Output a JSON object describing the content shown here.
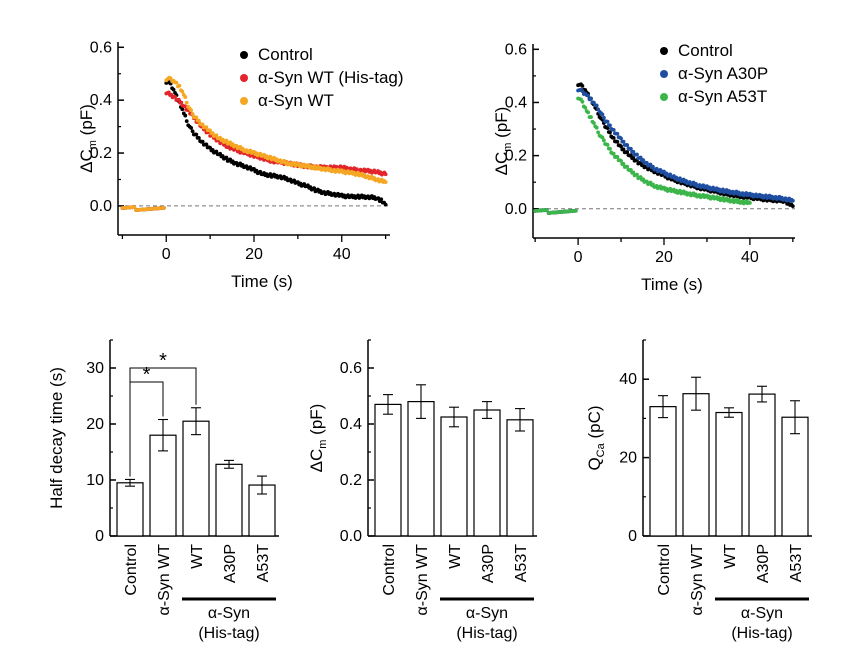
{
  "chart_data": [
    {
      "id": "A",
      "type": "scatter",
      "xlabel": "Time (s)",
      "ylabel_main": "ΔC",
      "ylabel_sub": "m",
      "ylabel_unit": " (pF)",
      "xlim": [
        -11,
        51
      ],
      "ylim": [
        -0.11,
        0.62
      ],
      "xticks": [
        0,
        20,
        40
      ],
      "yticks": [
        0.0,
        0.2,
        0.4,
        0.6
      ],
      "ytick_labels": [
        "0.0",
        "0.2",
        "0.4",
        "0.6"
      ],
      "baseline": 0,
      "series": [
        {
          "name": "Control",
          "color": "#000000",
          "pre": [
            -10,
            -0.2,
            0.0
          ],
          "points": [
            [
              0,
              0.47
            ],
            [
              1,
              0.46
            ],
            [
              2,
              0.43
            ],
            [
              3,
              0.39
            ],
            [
              4,
              0.35
            ],
            [
              5,
              0.31
            ],
            [
              6,
              0.28
            ],
            [
              8,
              0.245
            ],
            [
              10,
              0.215
            ],
            [
              12,
              0.195
            ],
            [
              14,
              0.175
            ],
            [
              16,
              0.16
            ],
            [
              18,
              0.15
            ],
            [
              20,
              0.135
            ],
            [
              22,
              0.12
            ],
            [
              24,
              0.115
            ],
            [
              26,
              0.11
            ],
            [
              28,
              0.1
            ],
            [
              30,
              0.085
            ],
            [
              32,
              0.075
            ],
            [
              34,
              0.06
            ],
            [
              36,
              0.05
            ],
            [
              38,
              0.045
            ],
            [
              40,
              0.038
            ],
            [
              42,
              0.035
            ],
            [
              44,
              0.035
            ],
            [
              46,
              0.034
            ],
            [
              48,
              0.03
            ],
            [
              49,
              0.02
            ],
            [
              50,
              0.005
            ]
          ]
        },
        {
          "name": "α-Syn WT (His-tag)",
          "color": "#e3242b",
          "pre": [
            -10,
            -0.2,
            0.0
          ],
          "points": [
            [
              0,
              0.43
            ],
            [
              2,
              0.41
            ],
            [
              4,
              0.38
            ],
            [
              6,
              0.34
            ],
            [
              8,
              0.3
            ],
            [
              10,
              0.27
            ],
            [
              12,
              0.245
            ],
            [
              14,
              0.225
            ],
            [
              16,
              0.21
            ],
            [
              18,
              0.2
            ],
            [
              20,
              0.19
            ],
            [
              22,
              0.18
            ],
            [
              24,
              0.17
            ],
            [
              26,
              0.165
            ],
            [
              28,
              0.16
            ],
            [
              30,
              0.155
            ],
            [
              32,
              0.15
            ],
            [
              34,
              0.148
            ],
            [
              36,
              0.145
            ],
            [
              38,
              0.145
            ],
            [
              40,
              0.145
            ],
            [
              42,
              0.14
            ],
            [
              44,
              0.135
            ],
            [
              46,
              0.132
            ],
            [
              48,
              0.128
            ],
            [
              50,
              0.12
            ]
          ]
        },
        {
          "name": "α-Syn WT",
          "color": "#f5a623",
          "pre": [
            -10,
            -0.2,
            0.0
          ],
          "points": [
            [
              0,
              0.48
            ],
            [
              1,
              0.48
            ],
            [
              2,
              0.47
            ],
            [
              3,
              0.45
            ],
            [
              4,
              0.42
            ],
            [
              5,
              0.38
            ],
            [
              6,
              0.345
            ],
            [
              8,
              0.31
            ],
            [
              10,
              0.28
            ],
            [
              12,
              0.255
            ],
            [
              14,
              0.24
            ],
            [
              16,
              0.225
            ],
            [
              18,
              0.21
            ],
            [
              20,
              0.2
            ],
            [
              22,
              0.19
            ],
            [
              24,
              0.18
            ],
            [
              26,
              0.17
            ],
            [
              28,
              0.16
            ],
            [
              30,
              0.155
            ],
            [
              32,
              0.15
            ],
            [
              34,
              0.145
            ],
            [
              36,
              0.14
            ],
            [
              38,
              0.135
            ],
            [
              40,
              0.13
            ],
            [
              42,
              0.125
            ],
            [
              44,
              0.12
            ],
            [
              46,
              0.11
            ],
            [
              48,
              0.1
            ],
            [
              50,
              0.09
            ]
          ]
        }
      ]
    },
    {
      "id": "B",
      "type": "scatter",
      "xlabel": "Time (s)",
      "ylabel_main": "ΔC",
      "ylabel_sub": "m",
      "ylabel_unit": " (pF)",
      "xlim": [
        -10.5,
        50.5
      ],
      "ylim": [
        -0.11,
        0.62
      ],
      "xticks": [
        0,
        20,
        40
      ],
      "yticks": [
        0.0,
        0.2,
        0.4,
        0.6
      ],
      "ytick_labels": [
        "0.0",
        "0.2",
        "0.4",
        "0.6"
      ],
      "baseline": 0,
      "series": [
        {
          "name": "Control",
          "color": "#000000",
          "pre": [
            -10,
            -0.2,
            0.0
          ],
          "points": [
            [
              0,
              0.47
            ],
            [
              1,
              0.46
            ],
            [
              2,
              0.44
            ],
            [
              3,
              0.41
            ],
            [
              4,
              0.38
            ],
            [
              5,
              0.35
            ],
            [
              6,
              0.32
            ],
            [
              8,
              0.27
            ],
            [
              10,
              0.23
            ],
            [
              12,
              0.2
            ],
            [
              14,
              0.175
            ],
            [
              16,
              0.155
            ],
            [
              18,
              0.14
            ],
            [
              20,
              0.125
            ],
            [
              22,
              0.11
            ],
            [
              24,
              0.1
            ],
            [
              26,
              0.09
            ],
            [
              28,
              0.08
            ],
            [
              30,
              0.072
            ],
            [
              32,
              0.065
            ],
            [
              34,
              0.058
            ],
            [
              36,
              0.052
            ],
            [
              38,
              0.047
            ],
            [
              40,
              0.042
            ],
            [
              42,
              0.038
            ],
            [
              44,
              0.035
            ],
            [
              46,
              0.032
            ],
            [
              48,
              0.03
            ],
            [
              49,
              0.02
            ],
            [
              50,
              0.01
            ]
          ]
        },
        {
          "name": "α-Syn A30P",
          "color": "#1f4ea1",
          "pre": [
            -10,
            -0.2,
            0.0
          ],
          "points": [
            [
              0,
              0.45
            ],
            [
              1,
              0.44
            ],
            [
              2,
              0.43
            ],
            [
              3,
              0.41
            ],
            [
              4,
              0.39
            ],
            [
              5,
              0.37
            ],
            [
              6,
              0.34
            ],
            [
              8,
              0.3
            ],
            [
              10,
              0.26
            ],
            [
              12,
              0.225
            ],
            [
              14,
              0.195
            ],
            [
              16,
              0.17
            ],
            [
              18,
              0.15
            ],
            [
              20,
              0.135
            ],
            [
              22,
              0.12
            ],
            [
              24,
              0.108
            ],
            [
              26,
              0.098
            ],
            [
              28,
              0.088
            ],
            [
              30,
              0.08
            ],
            [
              32,
              0.073
            ],
            [
              34,
              0.067
            ],
            [
              36,
              0.062
            ],
            [
              38,
              0.057
            ],
            [
              40,
              0.052
            ],
            [
              42,
              0.048
            ],
            [
              44,
              0.045
            ],
            [
              46,
              0.042
            ],
            [
              48,
              0.038
            ],
            [
              50,
              0.03
            ]
          ]
        },
        {
          "name": "α-Syn A53T",
          "color": "#3cb54a",
          "pre": [
            -10,
            -0.2,
            0.0
          ],
          "points": [
            [
              0,
              0.42
            ],
            [
              1,
              0.4
            ],
            [
              2,
              0.37
            ],
            [
              3,
              0.34
            ],
            [
              4,
              0.31
            ],
            [
              5,
              0.28
            ],
            [
              6,
              0.255
            ],
            [
              8,
              0.21
            ],
            [
              10,
              0.175
            ],
            [
              12,
              0.145
            ],
            [
              14,
              0.12
            ],
            [
              16,
              0.1
            ],
            [
              18,
              0.085
            ],
            [
              20,
              0.075
            ],
            [
              22,
              0.068
            ],
            [
              24,
              0.062
            ],
            [
              26,
              0.056
            ],
            [
              28,
              0.05
            ],
            [
              30,
              0.045
            ],
            [
              32,
              0.04
            ],
            [
              34,
              0.035
            ],
            [
              36,
              0.03
            ],
            [
              38,
              0.026
            ],
            [
              40,
              0.022
            ]
          ]
        }
      ]
    },
    {
      "id": "C",
      "type": "bar",
      "ylabel": "Half decay time (s)",
      "ylim": [
        0,
        35
      ],
      "yticks": [
        0,
        10,
        20,
        30
      ],
      "ytick_labels": [
        "0",
        "10",
        "20",
        "30"
      ],
      "categories": [
        "Control",
        "α-Syn WT",
        "WT",
        "A30P",
        "A53T"
      ],
      "values": [
        9.5,
        18.0,
        20.5,
        12.8,
        9.1
      ],
      "errors": [
        0.6,
        2.8,
        2.4,
        0.7,
        1.6
      ],
      "significance": [
        {
          "from": 0,
          "to": 1,
          "level": 27.5,
          "label": "*"
        },
        {
          "from": 0,
          "to": 2,
          "level": 30.0,
          "label": "*"
        }
      ],
      "group_label_line1": "α-Syn",
      "group_label_line2": "(His-tag)"
    },
    {
      "id": "D",
      "type": "bar",
      "ylabel_main": "ΔC",
      "ylabel_sub": "m",
      "ylabel_unit": " (pF)",
      "ylim": [
        0,
        0.7
      ],
      "yticks": [
        0.0,
        0.2,
        0.4,
        0.6
      ],
      "ytick_labels": [
        "0.0",
        "0.2",
        "0.4",
        "0.6"
      ],
      "categories": [
        "Control",
        "α-Syn WT",
        "WT",
        "A30P",
        "A53T"
      ],
      "values": [
        0.47,
        0.48,
        0.425,
        0.45,
        0.415
      ],
      "errors": [
        0.035,
        0.06,
        0.035,
        0.03,
        0.04
      ],
      "group_label_line1": "α-Syn",
      "group_label_line2": "(His-tag)"
    },
    {
      "id": "E",
      "type": "bar",
      "ylabel_main": "Q",
      "ylabel_sub": "Ca",
      "ylabel_unit": " (pC)",
      "ylim": [
        0,
        50
      ],
      "yticks": [
        0,
        20,
        40
      ],
      "ytick_labels": [
        "0",
        "20",
        "40"
      ],
      "categories": [
        "Control",
        "α-Syn WT",
        "WT",
        "A30P",
        "A53T"
      ],
      "values": [
        33,
        36.3,
        31.5,
        36.2,
        30.3
      ],
      "errors": [
        2.8,
        4.2,
        1.2,
        2.0,
        4.2
      ],
      "group_label_line1": "α-Syn",
      "group_label_line2": "(His-tag)"
    }
  ]
}
